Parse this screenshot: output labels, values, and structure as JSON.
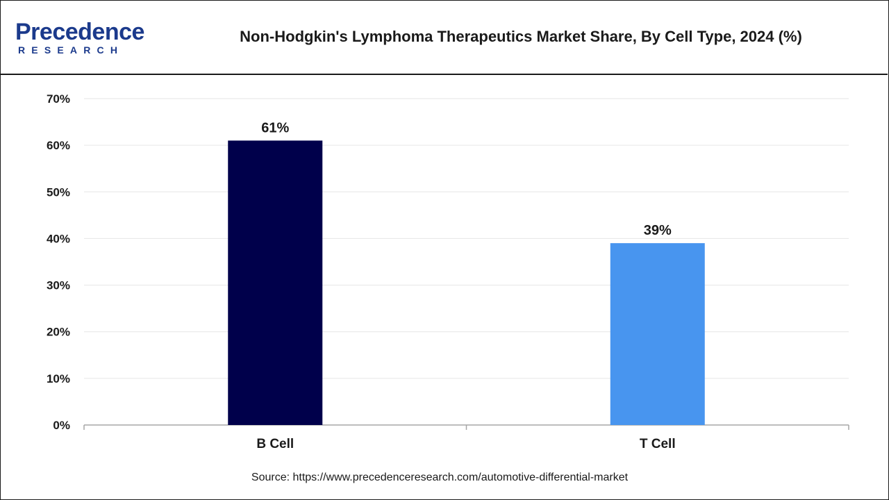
{
  "header": {
    "logo_word": "Precedence",
    "logo_sub": "RESEARCH",
    "title": "Non-Hodgkin's Lymphoma Therapeutics Market Share, By Cell Type, 2024 (%)"
  },
  "colors": {
    "b_cell": "#00004b",
    "t_cell": "#4895ef",
    "brand": "#1b3a8c",
    "grid": "#e6e6e6",
    "axis": "#a6a6a6",
    "text": "#1a1a1a"
  },
  "chart_data": {
    "type": "bar",
    "categories": [
      "B Cell",
      "T Cell"
    ],
    "values": [
      61,
      39
    ],
    "value_labels": [
      "61%",
      "39%"
    ],
    "yticks": [
      "0%",
      "10%",
      "20%",
      "30%",
      "40%",
      "50%",
      "60%",
      "70%"
    ],
    "ylim": [
      0,
      70
    ],
    "ystep": 10,
    "grid": true,
    "title": "",
    "xlabel": "",
    "ylabel": ""
  },
  "footer": {
    "source": "Source: https://www.precedenceresearch.com/automotive-differential-market"
  }
}
